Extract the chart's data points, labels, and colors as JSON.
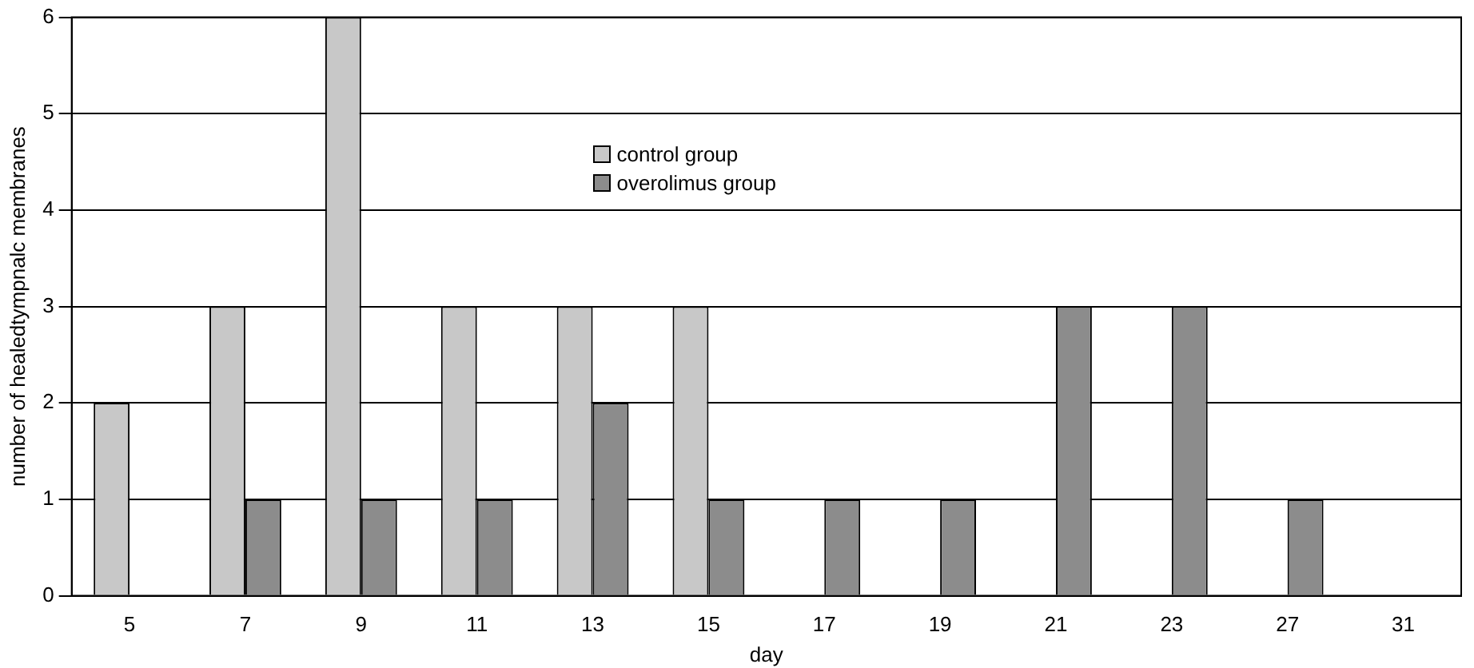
{
  "chart_data": {
    "type": "bar",
    "xlabel": "day",
    "ylabel": "number of healedtympnalc membranes",
    "categories": [
      "5",
      "7",
      "9",
      "11",
      "13",
      "15",
      "17",
      "19",
      "21",
      "23",
      "27",
      "31"
    ],
    "series": [
      {
        "name": "control group",
        "color": "#c8c8c8",
        "values": [
          2,
          3,
          6,
          3,
          3,
          3,
          0,
          0,
          0,
          0,
          0,
          0
        ]
      },
      {
        "name": "overolimus group",
        "color": "#8c8c8c",
        "values": [
          0,
          1,
          1,
          1,
          2,
          1,
          1,
          1,
          3,
          3,
          1,
          0
        ]
      }
    ],
    "ylim": [
      0,
      6
    ],
    "yticks": [
      0,
      1,
      2,
      3,
      4,
      5,
      6
    ],
    "grid": "y",
    "legend": "top"
  }
}
